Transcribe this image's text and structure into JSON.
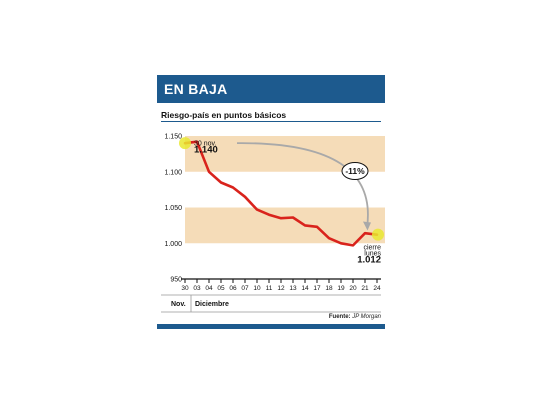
{
  "header": {
    "title": "EN BAJA"
  },
  "subtitle": "Riesgo-país en puntos básicos",
  "source": {
    "label": "Fuente:",
    "name": "JP Morgan"
  },
  "colors": {
    "banner": "#1d5a8e",
    "line": "#d9231c",
    "band": "#f5dcb8",
    "marker": "#e9e830",
    "arrow": "#a9a9a9"
  },
  "chart_data": {
    "type": "line",
    "title": "Riesgo-país en puntos básicos",
    "categories": [
      "30",
      "03",
      "04",
      "05",
      "06",
      "07",
      "10",
      "11",
      "12",
      "13",
      "14",
      "17",
      "18",
      "19",
      "20",
      "21",
      "24"
    ],
    "months": [
      "Nov.",
      "Diciembre"
    ],
    "series": [
      {
        "values": [
          1140,
          1142,
          1100,
          1085,
          1078,
          1065,
          1047,
          1040,
          1035,
          1036,
          1025,
          1023,
          1007,
          1000,
          997,
          1014,
          1012
        ]
      }
    ],
    "ylim": [
      950,
      1150
    ],
    "yticks": [
      "1.150",
      "1.100",
      "1.050",
      "1.000",
      "950"
    ],
    "bands": [
      [
        1100,
        1150
      ],
      [
        1000,
        1050
      ]
    ],
    "annotations": {
      "start": {
        "date": "30 nov.",
        "value": "1.140"
      },
      "end": {
        "label1": "cierre",
        "label2": "lunes",
        "value": "1.012"
      },
      "change": "-11%"
    }
  }
}
